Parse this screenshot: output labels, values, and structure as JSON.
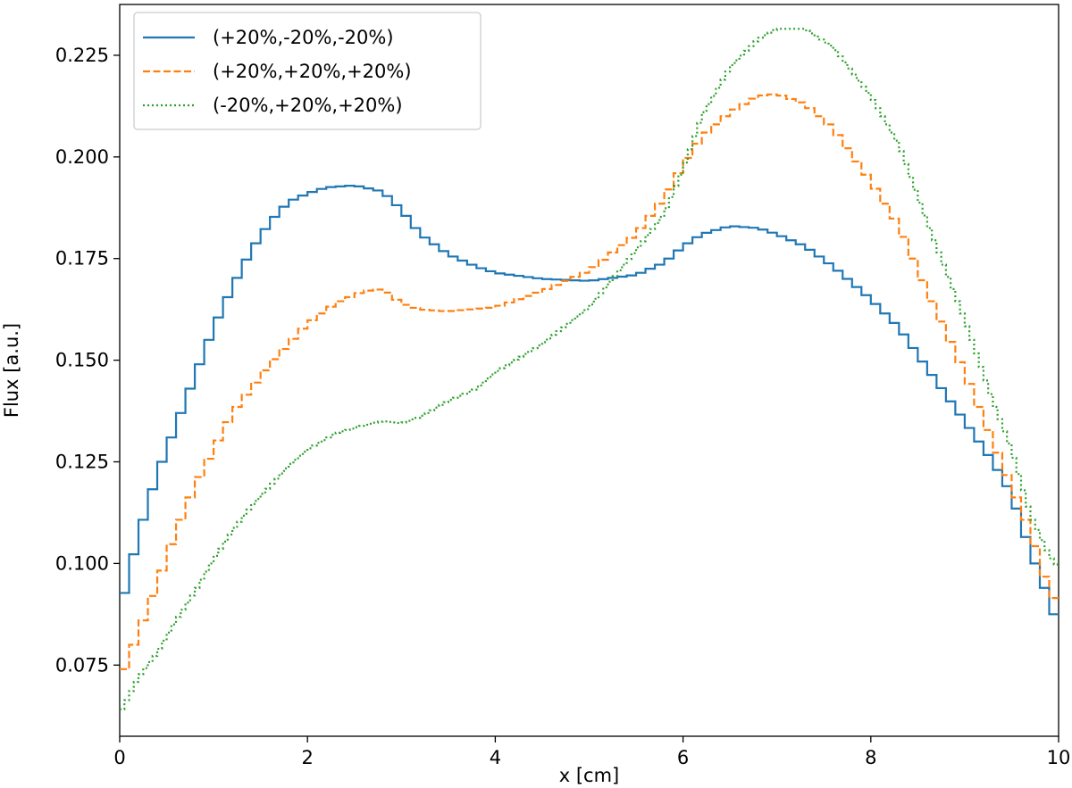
{
  "chart_data": {
    "type": "line",
    "step": true,
    "title": "",
    "xlabel": "x [cm]",
    "ylabel": "Flux [a.u.]",
    "xlim": [
      0,
      10
    ],
    "ylim": [
      0.0575,
      0.2375
    ],
    "xticks": [
      0,
      2,
      4,
      6,
      8,
      10
    ],
    "xtick_labels": [
      "0",
      "2",
      "4",
      "6",
      "8",
      "10"
    ],
    "yticks": [
      0.075,
      0.1,
      0.125,
      0.15,
      0.175,
      0.2,
      0.225
    ],
    "ytick_labels": [
      "0.075",
      "0.100",
      "0.125",
      "0.150",
      "0.175",
      "0.200",
      "0.225"
    ],
    "grid": false,
    "legend_position": "top-left",
    "series": [
      {
        "name": "(+20%,-20%,-20%)",
        "color": "#1f77b4",
        "dash": "solid",
        "bin_width": 0.1,
        "points": [
          [
            0,
            0.088
          ],
          [
            0.2,
            0.107
          ],
          [
            0.4,
            0.122
          ],
          [
            0.6,
            0.134
          ],
          [
            0.8,
            0.146
          ],
          [
            1.0,
            0.158
          ],
          [
            1.2,
            0.168
          ],
          [
            1.4,
            0.177
          ],
          [
            1.6,
            0.184
          ],
          [
            1.8,
            0.189
          ],
          [
            2.0,
            0.191
          ],
          [
            2.2,
            0.1925
          ],
          [
            2.5,
            0.193
          ],
          [
            2.8,
            0.1915
          ],
          [
            3.0,
            0.187
          ],
          [
            3.2,
            0.181
          ],
          [
            3.5,
            0.176
          ],
          [
            3.8,
            0.173
          ],
          [
            4.0,
            0.1715
          ],
          [
            4.5,
            0.17
          ],
          [
            5.0,
            0.1695
          ],
          [
            5.5,
            0.171
          ],
          [
            5.8,
            0.174
          ],
          [
            6.0,
            0.178
          ],
          [
            6.2,
            0.181
          ],
          [
            6.5,
            0.183
          ],
          [
            6.8,
            0.1825
          ],
          [
            7.0,
            0.181
          ],
          [
            7.3,
            0.178
          ],
          [
            7.6,
            0.173
          ],
          [
            8.0,
            0.165
          ],
          [
            8.3,
            0.158
          ],
          [
            8.6,
            0.148
          ],
          [
            9.0,
            0.135
          ],
          [
            9.3,
            0.125
          ],
          [
            9.5,
            0.117
          ],
          [
            9.7,
            0.103
          ],
          [
            9.9,
            0.091
          ],
          [
            10.0,
            0.084
          ]
        ]
      },
      {
        "name": "(+20%,+20%,+20%)",
        "color": "#ff7f0e",
        "dash": "dashed",
        "bin_width": 0.1,
        "points": [
          [
            0,
            0.071
          ],
          [
            0.2,
            0.083
          ],
          [
            0.4,
            0.095
          ],
          [
            0.6,
            0.108
          ],
          [
            0.8,
            0.119
          ],
          [
            1.0,
            0.128
          ],
          [
            1.2,
            0.137
          ],
          [
            1.4,
            0.143
          ],
          [
            1.6,
            0.149
          ],
          [
            1.8,
            0.154
          ],
          [
            2.0,
            0.159
          ],
          [
            2.3,
            0.164
          ],
          [
            2.6,
            0.167
          ],
          [
            2.8,
            0.1675
          ],
          [
            3.0,
            0.164
          ],
          [
            3.2,
            0.1625
          ],
          [
            3.5,
            0.162
          ],
          [
            4.0,
            0.163
          ],
          [
            4.5,
            0.167
          ],
          [
            5.0,
            0.172
          ],
          [
            5.5,
            0.181
          ],
          [
            5.8,
            0.19
          ],
          [
            6.0,
            0.198
          ],
          [
            6.2,
            0.205
          ],
          [
            6.5,
            0.211
          ],
          [
            6.8,
            0.215
          ],
          [
            7.0,
            0.2155
          ],
          [
            7.3,
            0.213
          ],
          [
            7.6,
            0.207
          ],
          [
            8.0,
            0.194
          ],
          [
            8.3,
            0.183
          ],
          [
            8.6,
            0.167
          ],
          [
            9.0,
            0.147
          ],
          [
            9.3,
            0.13
          ],
          [
            9.5,
            0.119
          ],
          [
            9.7,
            0.108
          ],
          [
            9.9,
            0.093
          ],
          [
            10.0,
            0.09
          ]
        ]
      },
      {
        "name": "(-20%,+20%,+20%)",
        "color": "#2ca02c",
        "dash": "dotted",
        "bin_width": 0.05,
        "points": [
          [
            0,
            0.063
          ],
          [
            0.2,
            0.072
          ],
          [
            0.4,
            0.078
          ],
          [
            0.6,
            0.086
          ],
          [
            0.8,
            0.093
          ],
          [
            1.0,
            0.101
          ],
          [
            1.2,
            0.108
          ],
          [
            1.4,
            0.114
          ],
          [
            1.6,
            0.119
          ],
          [
            1.8,
            0.124
          ],
          [
            2.0,
            0.128
          ],
          [
            2.3,
            0.132
          ],
          [
            2.6,
            0.134
          ],
          [
            2.8,
            0.135
          ],
          [
            3.0,
            0.1345
          ],
          [
            3.2,
            0.136
          ],
          [
            3.5,
            0.14
          ],
          [
            3.8,
            0.143
          ],
          [
            4.0,
            0.147
          ],
          [
            4.5,
            0.154
          ],
          [
            5.0,
            0.163
          ],
          [
            5.5,
            0.177
          ],
          [
            5.8,
            0.186
          ],
          [
            6.0,
            0.197
          ],
          [
            6.2,
            0.21
          ],
          [
            6.5,
            0.222
          ],
          [
            6.8,
            0.229
          ],
          [
            7.0,
            0.2315
          ],
          [
            7.3,
            0.2315
          ],
          [
            7.6,
            0.227
          ],
          [
            8.0,
            0.215
          ],
          [
            8.3,
            0.203
          ],
          [
            8.6,
            0.184
          ],
          [
            9.0,
            0.16
          ],
          [
            9.3,
            0.14
          ],
          [
            9.5,
            0.128
          ],
          [
            9.7,
            0.112
          ],
          [
            9.9,
            0.102
          ],
          [
            10.0,
            0.099
          ]
        ]
      }
    ]
  }
}
